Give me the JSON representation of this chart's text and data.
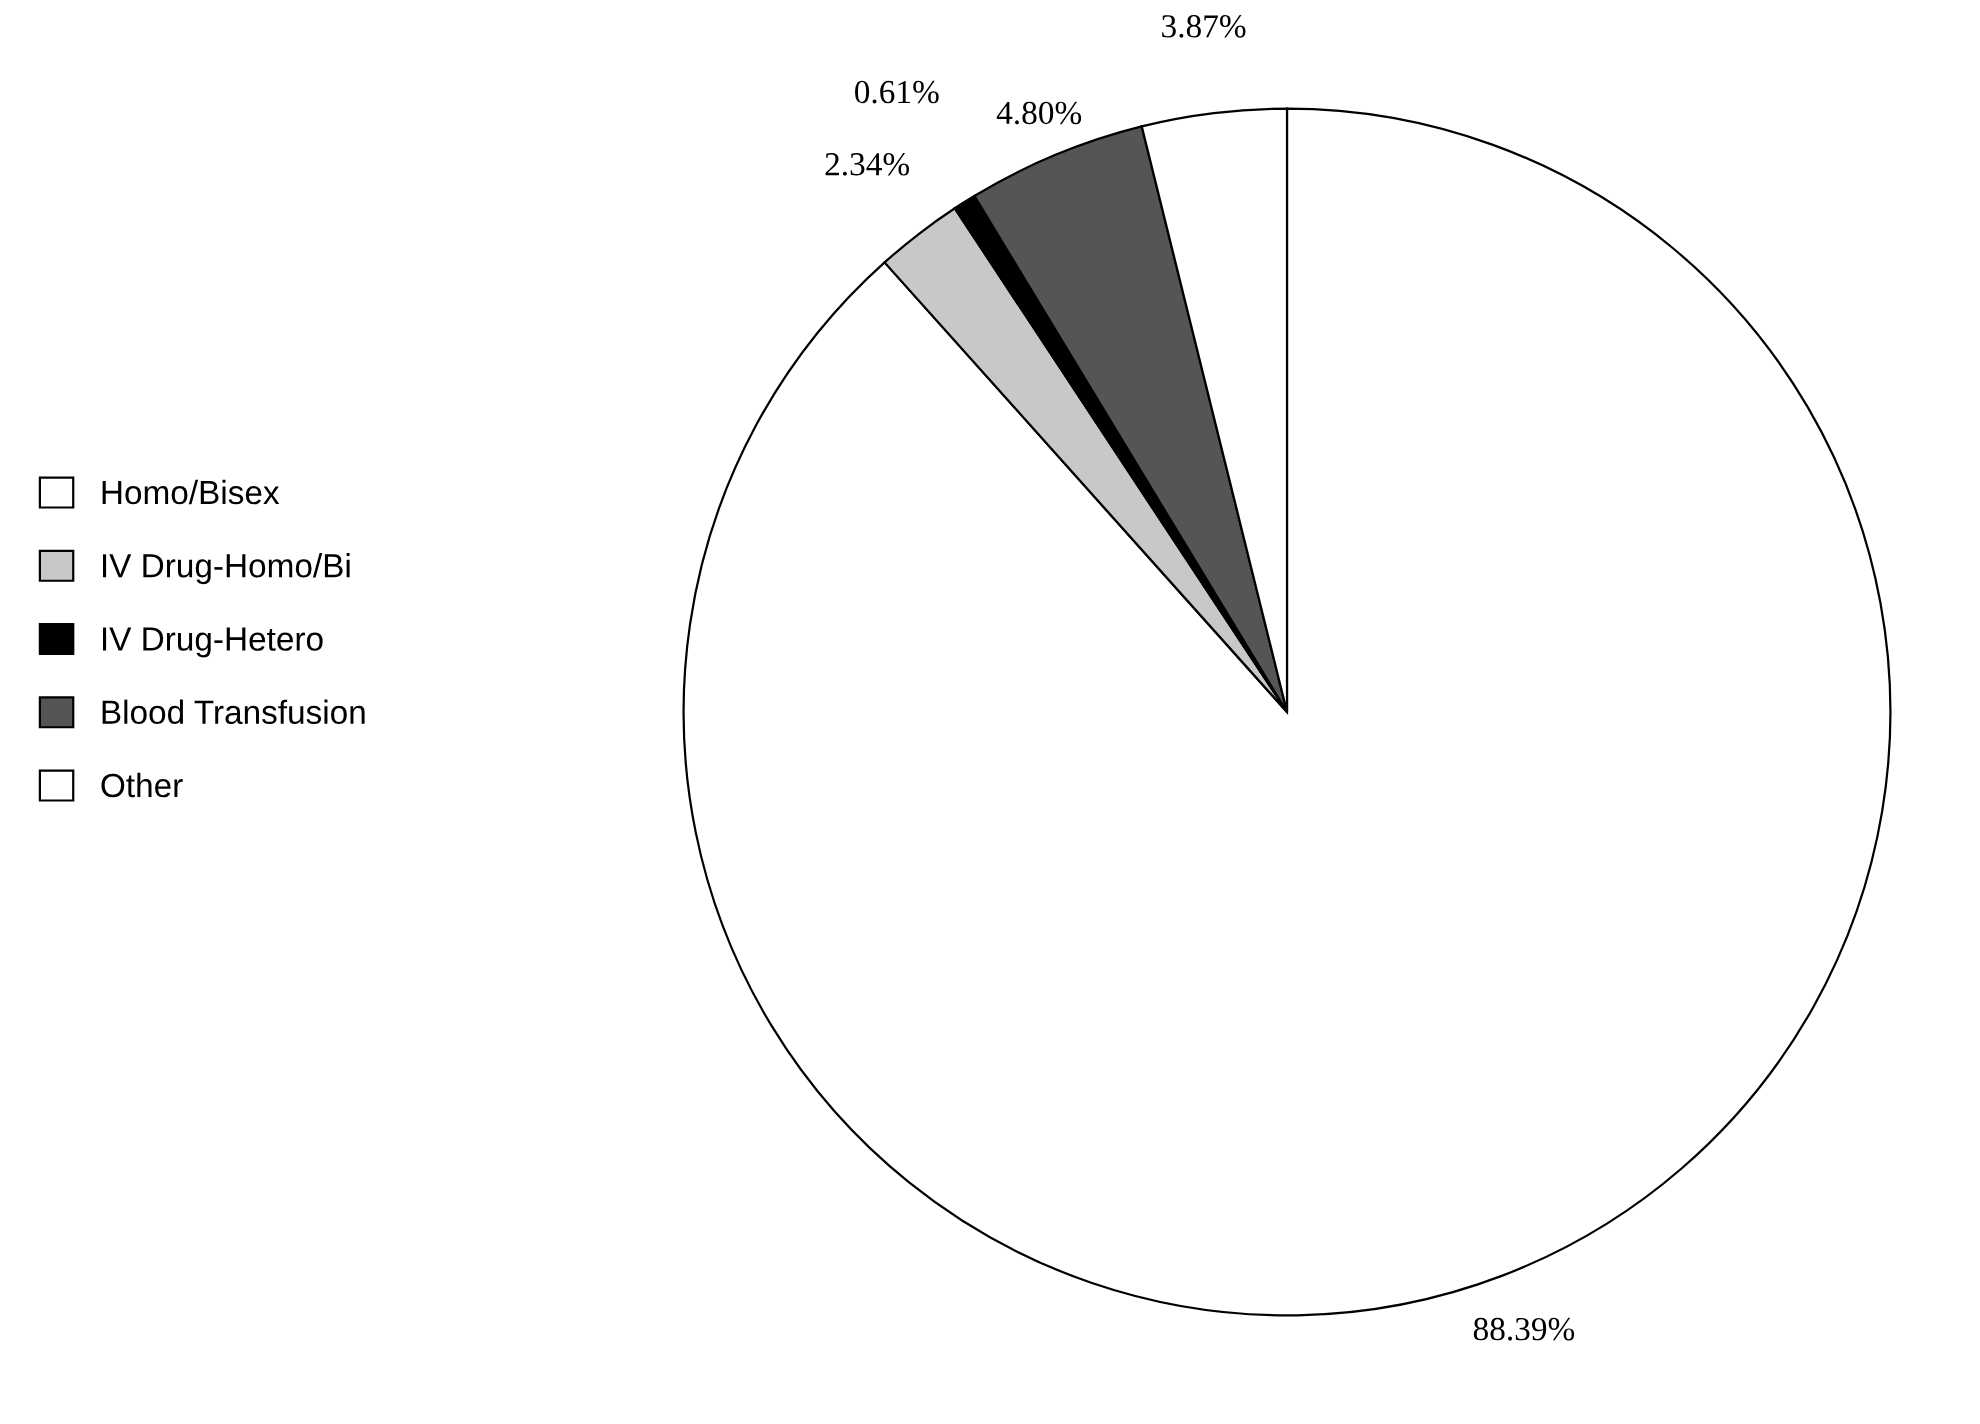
{
  "chart_data": {
    "type": "pie",
    "categories": [
      "Homo/Bisex",
      "IV Drug-Homo/Bi",
      "IV Drug-Hetero",
      "Blood Transfusion",
      "Other"
    ],
    "values": [
      88.39,
      2.34,
      0.61,
      4.8,
      3.87
    ],
    "value_labels": [
      "88.39%",
      "2.34%",
      "0.61%",
      "4.80%",
      "3.87%"
    ],
    "colors": [
      "#ffffff",
      "#c8c8c8",
      "#000000",
      "#555555",
      "#ffffff"
    ],
    "legend": "left"
  }
}
